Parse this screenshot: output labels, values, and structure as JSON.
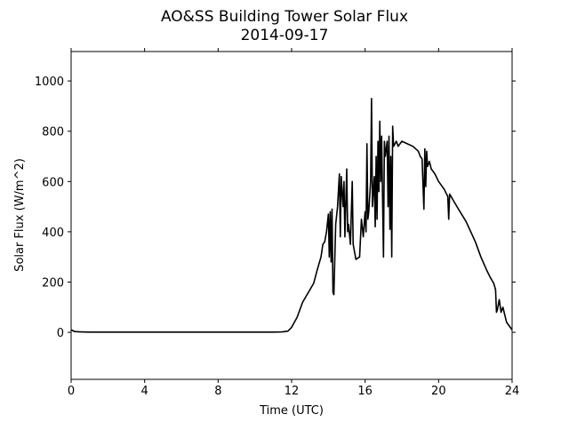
{
  "chart_data": {
    "type": "line",
    "title": "AO&SS Building Tower Solar Flux",
    "subtitle": "2014-09-17",
    "x_label": "Time (UTC)",
    "y_label": "Solar Flux (W/m^2)",
    "xlim": [
      0,
      24
    ],
    "xticks": [
      0,
      4,
      8,
      12,
      16,
      20,
      24
    ],
    "ylim": [
      -187,
      1117
    ],
    "yticks": [
      0,
      200,
      400,
      600,
      800,
      1000
    ],
    "series": [
      {
        "name": "Solar Flux",
        "color": "#000000",
        "x": [
          0,
          0.2,
          0.5,
          1,
          2,
          3,
          4,
          5,
          6,
          7,
          8,
          9,
          10,
          11,
          11.5,
          11.8,
          12,
          12.3,
          12.6,
          13,
          13.2,
          13.4,
          13.6,
          13.7,
          13.8,
          13.9,
          14,
          14.05,
          14.1,
          14.15,
          14.2,
          14.25,
          14.3,
          14.4,
          14.5,
          14.6,
          14.65,
          14.7,
          14.8,
          14.85,
          14.9,
          15,
          15.05,
          15.1,
          15.2,
          15.3,
          15.35,
          15.5,
          15.7,
          15.8,
          15.9,
          16,
          16.05,
          16.1,
          16.15,
          16.2,
          16.3,
          16.35,
          16.4,
          16.5,
          16.55,
          16.6,
          16.65,
          16.7,
          16.75,
          16.8,
          16.85,
          16.9,
          17,
          17.05,
          17.1,
          17.2,
          17.25,
          17.3,
          17.35,
          17.4,
          17.45,
          17.5,
          17.55,
          17.7,
          17.8,
          18,
          18.3,
          18.6,
          18.9,
          19,
          19.1,
          19.2,
          19.25,
          19.3,
          19.35,
          19.4,
          19.5,
          19.6,
          19.8,
          20,
          20.3,
          20.5,
          20.55,
          20.6,
          21,
          21.5,
          22,
          22.3,
          22.6,
          22.8,
          23,
          23.1,
          23.15,
          23.2,
          23.3,
          23.4,
          23.5,
          23.6,
          23.7,
          24
        ],
        "values": [
          10,
          3,
          2,
          1,
          1,
          1,
          1,
          1,
          1,
          1,
          1,
          1,
          1,
          1,
          2,
          5,
          20,
          60,
          120,
          170,
          195,
          250,
          300,
          350,
          360,
          400,
          470,
          300,
          480,
          280,
          490,
          160,
          150,
          430,
          500,
          630,
          380,
          620,
          500,
          600,
          380,
          650,
          400,
          430,
          350,
          600,
          350,
          290,
          300,
          450,
          380,
          480,
          400,
          750,
          450,
          480,
          600,
          930,
          500,
          620,
          420,
          700,
          450,
          760,
          560,
          840,
          600,
          780,
          300,
          760,
          700,
          760,
          500,
          780,
          410,
          700,
          300,
          820,
          740,
          760,
          740,
          760,
          750,
          740,
          720,
          700,
          690,
          490,
          730,
          580,
          720,
          660,
          680,
          650,
          630,
          600,
          570,
          540,
          450,
          550,
          500,
          440,
          360,
          300,
          250,
          220,
          195,
          170,
          80,
          90,
          130,
          80,
          100,
          70,
          40,
          10
        ]
      }
    ]
  }
}
